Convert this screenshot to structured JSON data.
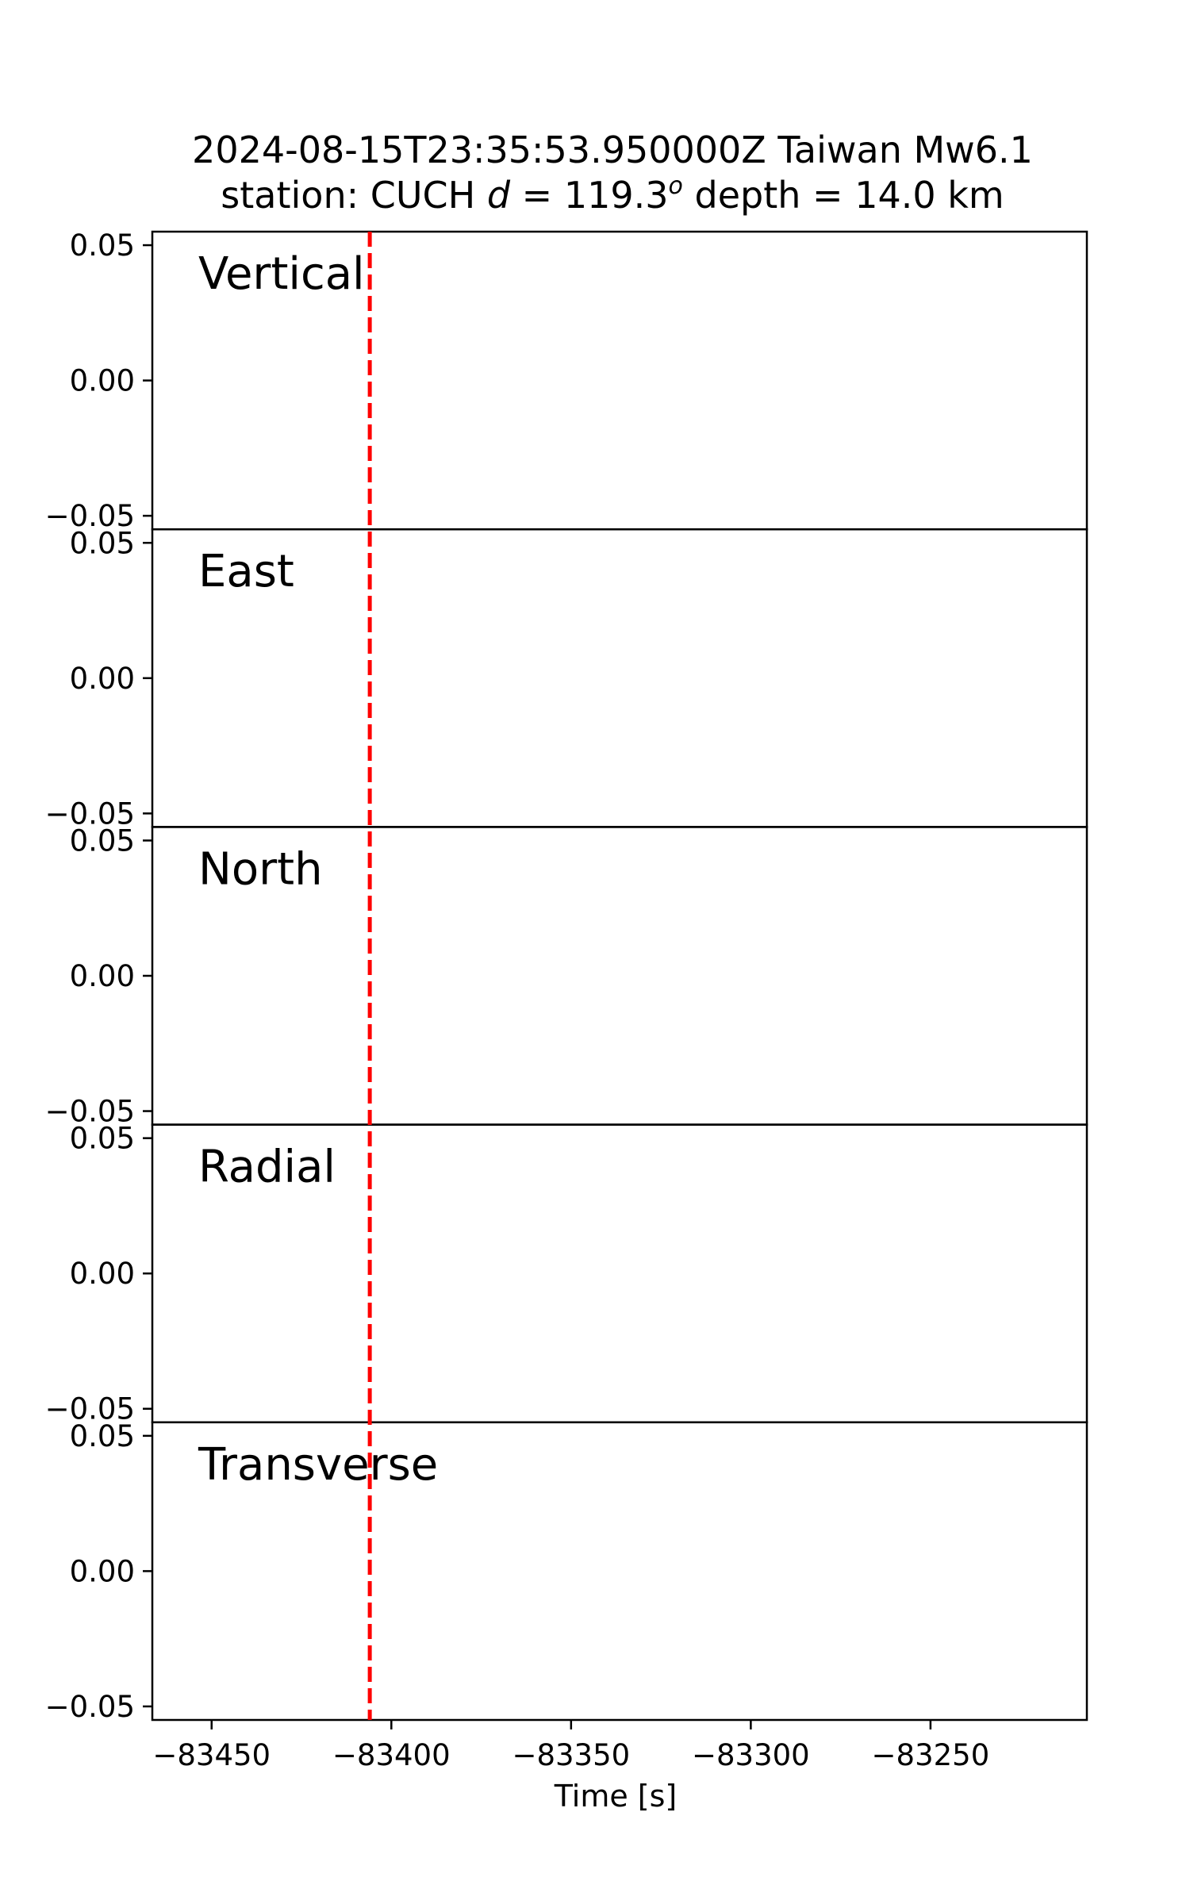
{
  "figure": {
    "title_line1": "2024-08-15T23:35:53.950000Z Taiwan Mw6.1",
    "title_line2_prefix": "station: CUCH ",
    "title_line2_d": "d",
    "title_line2_eq": " = 119.3",
    "title_line2_sup": "o",
    "title_line2_suffix": " depth = 14.0 km",
    "background": "#ffffff"
  },
  "chart_data": {
    "type": "line",
    "title": "2024-08-15T23:35:53.950000Z Taiwan Mw6.1 station: CUCH d = 119.3o depth = 14.0 km",
    "xlabel": "Time [s]",
    "xlim": [
      -83466.5,
      -83206.5
    ],
    "ylim": [
      -0.055,
      0.055
    ],
    "x_ticks": [
      -83450,
      -83400,
      -83350,
      -83300,
      -83250
    ],
    "x_tick_labels": [
      "−83450",
      "−83400",
      "−83350",
      "−83300",
      "−83250"
    ],
    "y_ticks": [
      0.05,
      0.0,
      -0.05
    ],
    "y_tick_labels": [
      "0.05",
      "0.00",
      "−0.05"
    ],
    "grid": false,
    "panels": [
      {
        "label": "Vertical",
        "series": []
      },
      {
        "label": "East",
        "series": []
      },
      {
        "label": "North",
        "series": []
      },
      {
        "label": "Radial",
        "series": []
      },
      {
        "label": "Transverse",
        "series": []
      }
    ],
    "marker_line": {
      "x": -83406,
      "style": "dashed",
      "color": "#ff0000"
    },
    "colors": {
      "axes": "#000000",
      "marker": "#ff0000"
    }
  }
}
